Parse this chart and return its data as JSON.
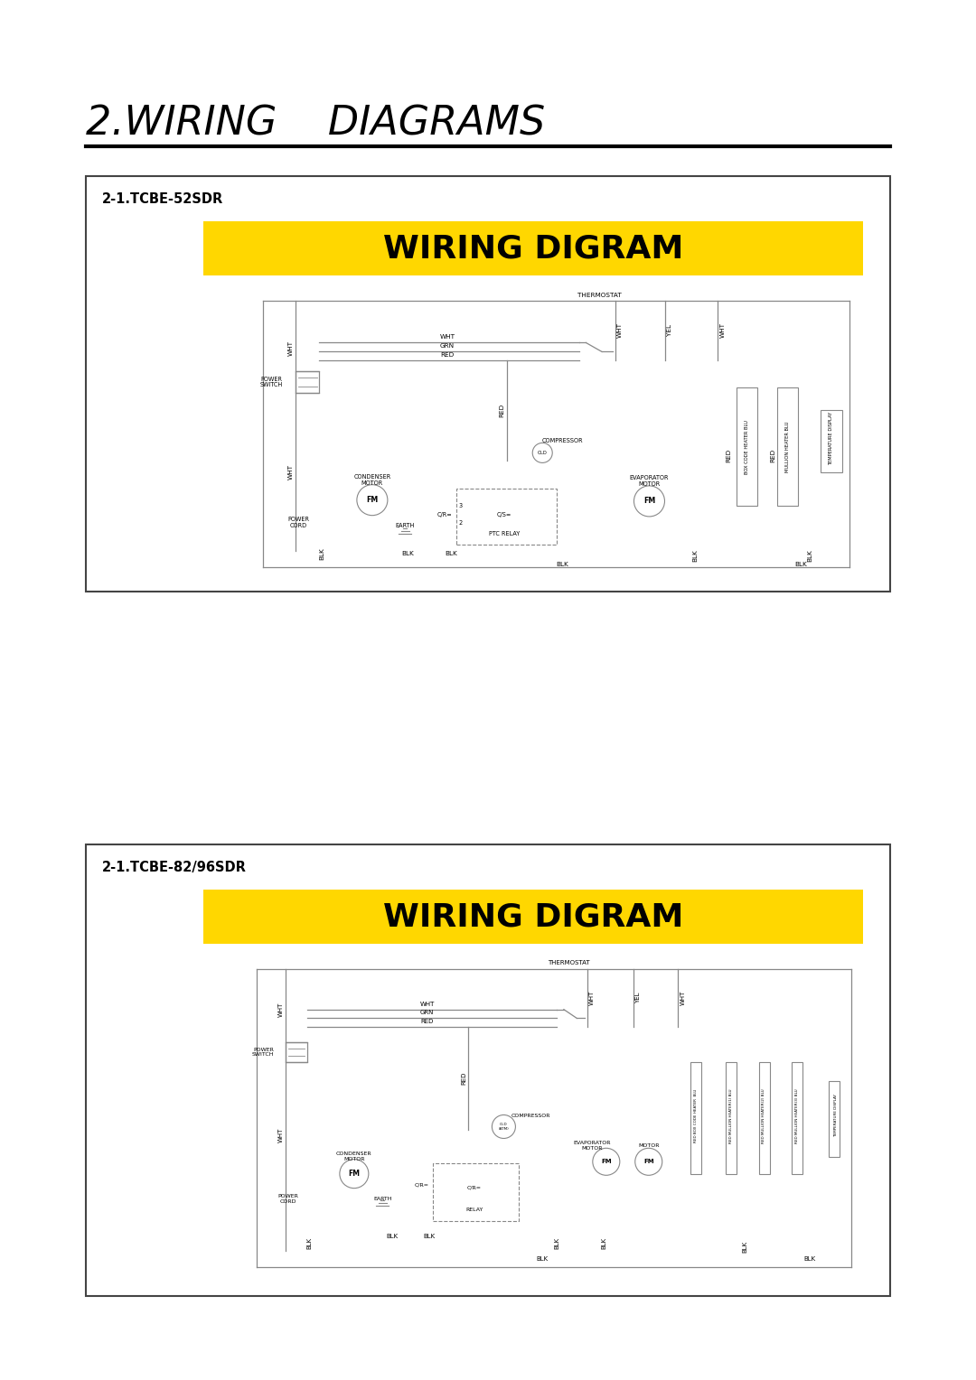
{
  "title": "2.WIRING    DIAGRAMS",
  "title_fontsize": 32,
  "background_color": "#ffffff",
  "box1_label": "2-1.TCBE-52SDR",
  "box2_label": "2-1.TCBE-82/96SDR",
  "wiring_title": "WIRING DIGRAM",
  "wiring_bg": "#FFD700",
  "wiring_text_color": "#000000",
  "line_color": "#888888",
  "text_color": "#000000",
  "border_color": "#444444"
}
